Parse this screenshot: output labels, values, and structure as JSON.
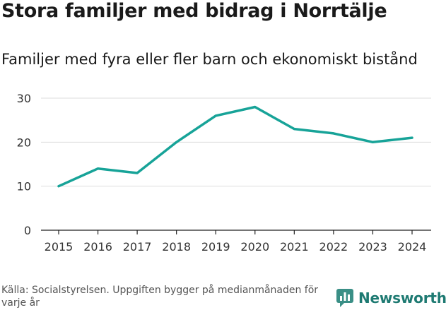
{
  "header": {
    "title": "Stora familjer med bidrag i Norrtälje",
    "subtitle": "Familjer med fyra eller fler barn och ekonomiskt bistånd"
  },
  "chart_data": {
    "type": "line",
    "title": "Stora familjer med bidrag i Norrtälje",
    "subtitle": "Familjer med fyra eller fler barn och ekonomiskt bistånd",
    "xlabel": "",
    "ylabel": "",
    "x": [
      "2015",
      "2016",
      "2017",
      "2018",
      "2019",
      "2020",
      "2021",
      "2022",
      "2023",
      "2024"
    ],
    "series": [
      {
        "name": "Familjer",
        "values": [
          10,
          14,
          13,
          20,
          26,
          28,
          23,
          22,
          20,
          21
        ]
      }
    ],
    "yticks": [
      0,
      10,
      20,
      30
    ],
    "ylim": [
      0,
      30
    ],
    "grid": true,
    "line_color": "#17a398"
  },
  "footer": {
    "source": "Källa: Socialstyrelsen. Uppgiften bygger på medianmånaden för varje år",
    "brand": "Newsworthy",
    "brand_color": "#1e7a72",
    "logo_icon": "newsworthy-logo-icon"
  }
}
